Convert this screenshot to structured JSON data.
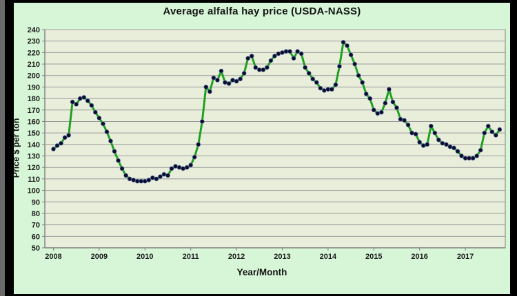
{
  "window": {
    "frame_color": "#000000",
    "edge_strip_color": "#6a6a6a",
    "panel_bg": "#d7f6d7"
  },
  "chart_data": {
    "type": "line",
    "title": "Average alfalfa hay price (USDA-NASS)",
    "xlabel": "Year/Month",
    "ylabel": "Price $ per ton",
    "ylim": [
      50,
      240
    ],
    "ytick_step": 10,
    "grid": true,
    "legend_position": "none",
    "x_start_month": "2008-01",
    "x_end_month": "2017-10",
    "x_year_labels": [
      "2008",
      "2009",
      "2010",
      "2011",
      "2012",
      "2013",
      "2014",
      "2015",
      "2016",
      "2017"
    ],
    "series": [
      {
        "name": "Average alfalfa hay price, $ per ton",
        "monthly_values": [
          136,
          139,
          141,
          146,
          148,
          177,
          175,
          180,
          181,
          178,
          174,
          168,
          163,
          158,
          151,
          143,
          134,
          126,
          119,
          113,
          110,
          109,
          108,
          108,
          108,
          109,
          111,
          110,
          112,
          114,
          113,
          119,
          121,
          120,
          119,
          120,
          122,
          129,
          140,
          160,
          190,
          186,
          198,
          196,
          204,
          194,
          193,
          196,
          195,
          197,
          202,
          215,
          217,
          207,
          205,
          205,
          207,
          213,
          217,
          219,
          220,
          221,
          221,
          215,
          221,
          219,
          207,
          202,
          197,
          194,
          189,
          187,
          188,
          188,
          192,
          208,
          229,
          226,
          218,
          210,
          200,
          194,
          184,
          180,
          170,
          167,
          168,
          176,
          188,
          177,
          172,
          162,
          161,
          157,
          150,
          149,
          142,
          139,
          140,
          156,
          150,
          144,
          141,
          140,
          138,
          137,
          134,
          130,
          128,
          128,
          128,
          130,
          135,
          150,
          156,
          151,
          148,
          153
        ]
      }
    ],
    "colors": {
      "line": "#1ea01e",
      "marker": "#0c0c2e",
      "marker_edge": "#7b9fd4",
      "plot_bg": "#e9eedb",
      "grid": "#9a9a9a",
      "axis": "#7f7f7f",
      "text": "#1a1a1a"
    }
  }
}
